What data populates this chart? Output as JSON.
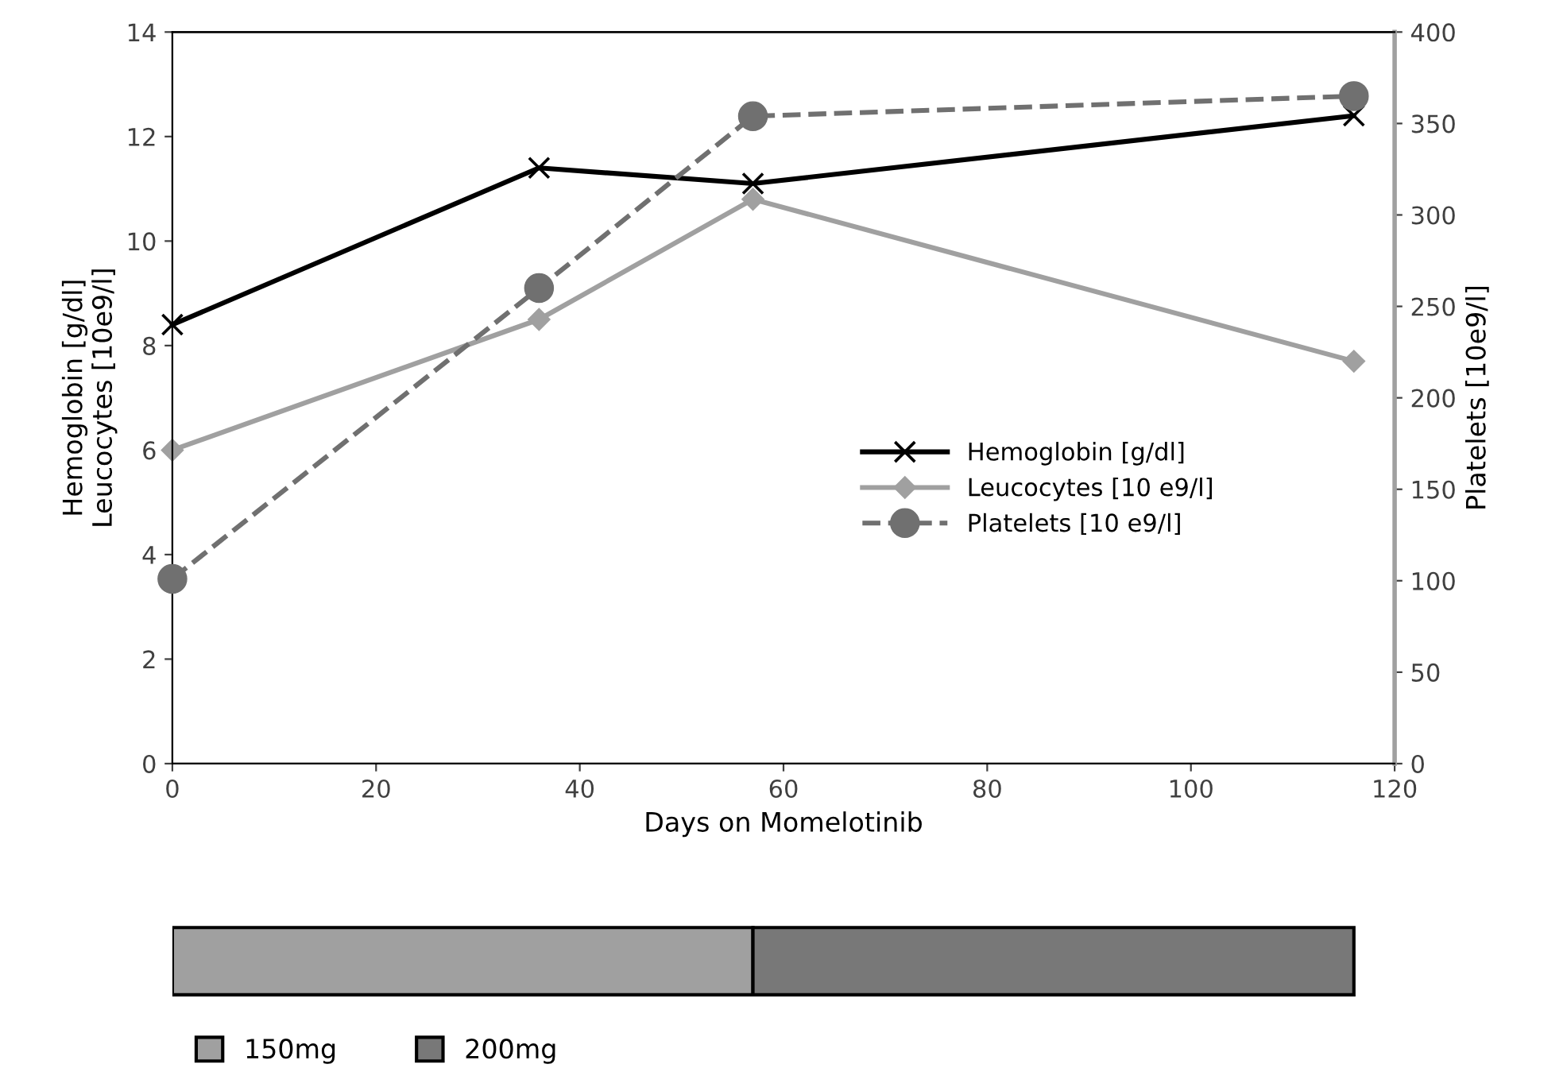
{
  "chart_data": [
    {
      "type": "line",
      "xlabel": "Days on Momelotinib",
      "ylabel": "Hemoglobin [g/dl]\nLeucocytes [10e9/l]",
      "y2label": "Platelets [10e9/l]",
      "x": [
        0,
        36,
        57,
        116
      ],
      "series": [
        {
          "name": "Hemoglobin [g/dl]",
          "color": "#000000",
          "values": [
            8.4,
            11.4,
            11.1,
            12.4
          ],
          "marker": "cross",
          "line_style": "solid"
        },
        {
          "name": "Leucocytes [10 e9/l]",
          "color": "#a0a0a0",
          "values": [
            6.0,
            8.5,
            10.8,
            7.7
          ],
          "marker": "diamond",
          "line_style": "solid"
        },
        {
          "name": "Platelets [10 e9/l]",
          "color": "#707070",
          "values": [
            101,
            260,
            354,
            365
          ],
          "marker": "circle",
          "line_style": "dashed",
          "axis": "y2"
        }
      ],
      "xlim": [
        0,
        120
      ],
      "xticks": [
        0,
        20,
        40,
        60,
        80,
        100,
        120
      ],
      "ylim": [
        0,
        14
      ],
      "yticks": [
        0,
        2,
        4,
        6,
        8,
        10,
        12,
        14
      ],
      "y2lim": [
        0,
        400
      ],
      "y2ticks": [
        0,
        50,
        100,
        150,
        200,
        250,
        300,
        350,
        400
      ],
      "grid": false,
      "legend": "center right"
    },
    {
      "type": "bar",
      "orientation": "horizontal",
      "stacked": true,
      "categories": [
        null
      ],
      "series": [
        {
          "name": "150mg",
          "color": "#a0a0a0",
          "values": [
            57
          ]
        },
        {
          "name": "200mg",
          "color": "#787878",
          "values": [
            59
          ]
        }
      ],
      "xlim": [
        0,
        120
      ],
      "tick_labels": false,
      "legend": "bottom left"
    }
  ]
}
